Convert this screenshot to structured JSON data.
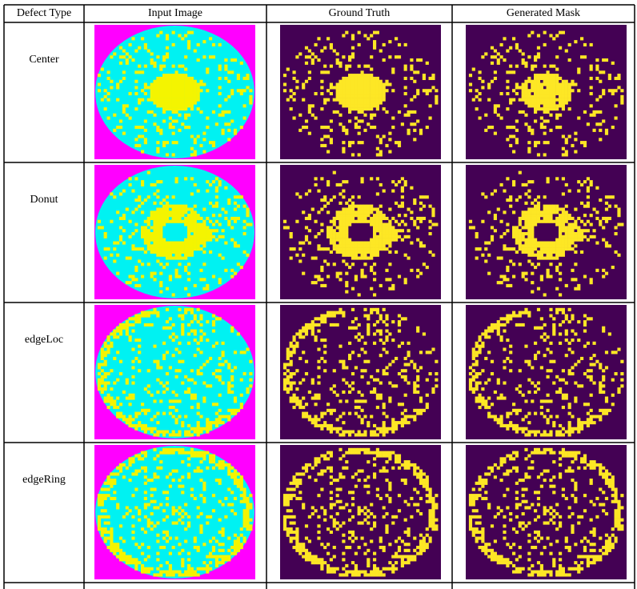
{
  "table": {
    "header": [
      "Defect Type",
      "Input Image",
      "Ground Truth",
      "Generated Mask"
    ],
    "rows": [
      [
        "Center"
      ],
      [
        "Donut"
      ],
      [
        "edgeLoc"
      ],
      [
        "edgeRing"
      ]
    ]
  }
}
